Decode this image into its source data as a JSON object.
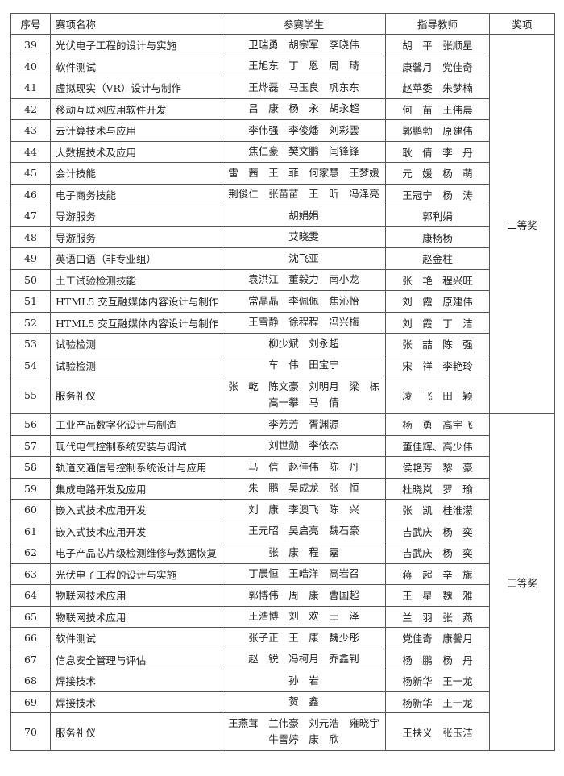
{
  "headers": {
    "no": "序号",
    "event": "赛项名称",
    "students": "参赛学生",
    "teachers": "指导教师",
    "award": "奖项"
  },
  "groups": [
    {
      "award": "二等奖",
      "rows": [
        {
          "no": "39",
          "event": "光伏电子工程的设计与实施",
          "students": [
            "卫瑞勇　胡宗军　李晓伟"
          ],
          "teachers": "胡　平　张顺星"
        },
        {
          "no": "40",
          "event": "软件测试",
          "students": [
            "王旭东　丁　恩　周　琦"
          ],
          "teachers": "康馨月　党佳奇"
        },
        {
          "no": "41",
          "event": "虚拟现实（VR）设计与制作",
          "students": [
            "王烨磊　马玉良　巩东东"
          ],
          "teachers": "赵苹委　朱梦楠"
        },
        {
          "no": "42",
          "event": "移动互联网应用软件开发",
          "students": [
            "吕　康　杨　永　胡永超"
          ],
          "teachers": "何　苗　王伟晨"
        },
        {
          "no": "43",
          "event": "云计算技术与应用",
          "students": [
            "李伟强　李俊燔　刘彩雲"
          ],
          "teachers": "郭鹏勃　原建伟"
        },
        {
          "no": "44",
          "event": "大数据技术及应用",
          "students": [
            "焦仁豪　樊文鹏　闫锋锋"
          ],
          "teachers": "耿　倩　李　丹"
        },
        {
          "no": "45",
          "event": "会计技能",
          "students": [
            "雷　茜　王　菲　何家慧　王梦媛"
          ],
          "teachers": "元　媛　杨　萌"
        },
        {
          "no": "46",
          "event": "电子商务技能",
          "students": [
            "荆俊仁　张苗苗　王　昕　冯泽亮"
          ],
          "teachers": "王冠宁　杨　涛"
        },
        {
          "no": "47",
          "event": "导游服务",
          "students": [
            "胡娟娟"
          ],
          "teachers": "郭利娟"
        },
        {
          "no": "48",
          "event": "导游服务",
          "students": [
            "艾晓雯"
          ],
          "teachers": "康杨杨"
        },
        {
          "no": "49",
          "event": "英语口语（非专业组）",
          "students": [
            "沈飞亚"
          ],
          "teachers": "赵金柱"
        },
        {
          "no": "50",
          "event": "土工试验检测技能",
          "students": [
            "袁洪江　董毅力　南小龙"
          ],
          "teachers": "张　艳　程兴旺"
        },
        {
          "no": "51",
          "event": "HTML5 交互融媒体内容设计与制作",
          "students": [
            "常晶晶　李佩佩　焦沁怡"
          ],
          "teachers": "刘　霞　原建伟"
        },
        {
          "no": "52",
          "event": "HTML5 交互融媒体内容设计与制作",
          "students": [
            "王雪静　徐程程　冯兴梅"
          ],
          "teachers": "刘　霞　丁　洁"
        },
        {
          "no": "53",
          "event": "试验检测",
          "students": [
            "柳少斌　刘永超"
          ],
          "teachers": "张　喆　陈　强"
        },
        {
          "no": "54",
          "event": "试验检测",
          "students": [
            "车　伟　田宝宁"
          ],
          "teachers": "宋　祥　李艳玲"
        },
        {
          "no": "55",
          "event": "服务礼仪",
          "students": [
            "张　乾　陈文豪　刘明月　梁　栋",
            "高一攀　马　倩"
          ],
          "teachers": "凌　飞　田　颖"
        }
      ]
    },
    {
      "award": "三等奖",
      "rows": [
        {
          "no": "56",
          "event": "工业产品数字化设计与制造",
          "students": [
            "李芳芳　胥渊源"
          ],
          "teachers": "杨　勇　高宇飞"
        },
        {
          "no": "57",
          "event": "现代电气控制系统安装与调试",
          "students": [
            "刘世勋　李依杰"
          ],
          "teachers": "董佳辉、高少伟"
        },
        {
          "no": "58",
          "event": "轨道交通信号控制系统设计与应用",
          "students": [
            "马　信　赵佳伟　陈　丹"
          ],
          "teachers": "侯艳芳　黎　豪"
        },
        {
          "no": "59",
          "event": "集成电路开发及应用",
          "students": [
            "朱　鹏　吴成龙　张　恒"
          ],
          "teachers": "杜晓岚　罗　瑜"
        },
        {
          "no": "60",
          "event": "嵌入式技术应用开发",
          "students": [
            "刘　康　李澳飞　陈　兴"
          ],
          "teachers": "张　凯　桂淮濛"
        },
        {
          "no": "61",
          "event": "嵌入式技术应用开发",
          "students": [
            "王元昭　吴启亮　魏石豪"
          ],
          "teachers": "吉武庆　杨　奕"
        },
        {
          "no": "62",
          "event": "电子产品芯片级检测维修与数据恢复",
          "students": [
            "张　康　程　嘉"
          ],
          "teachers": "吉武庆　杨　奕"
        },
        {
          "no": "63",
          "event": "光伏电子工程的设计与实施",
          "students": [
            "丁晨恒　王皓洋　高岩召"
          ],
          "teachers": "蒋　超　辛　旗"
        },
        {
          "no": "64",
          "event": "物联网技术应用",
          "students": [
            "郭博伟　周　康　曹国超"
          ],
          "teachers": "王　星　魏　雅"
        },
        {
          "no": "65",
          "event": "物联网技术应用",
          "students": [
            "王浩博　刘　欢　王　泽"
          ],
          "teachers": "兰　羽　张　燕"
        },
        {
          "no": "66",
          "event": "软件测试",
          "students": [
            "张子正　王　康　魏少彤"
          ],
          "teachers": "党佳奇　康馨月"
        },
        {
          "no": "67",
          "event": "信息安全管理与评估",
          "students": [
            "赵　锐　冯柯月　乔鑫钊"
          ],
          "teachers": "杨　鹏　杨　丹"
        },
        {
          "no": "68",
          "event": "焊接技术",
          "students": [
            "孙　岩"
          ],
          "teachers": "杨新华　王一龙"
        },
        {
          "no": "69",
          "event": "焊接技术",
          "students": [
            "贺　鑫"
          ],
          "teachers": "杨新华　王一龙"
        },
        {
          "no": "70",
          "event": "服务礼仪",
          "students": [
            "王燕茸　兰伟豪　刘元浩　雍晓宇",
            "牛雪婷　康　欣"
          ],
          "teachers": "王扶义　张玉洁"
        }
      ]
    }
  ]
}
